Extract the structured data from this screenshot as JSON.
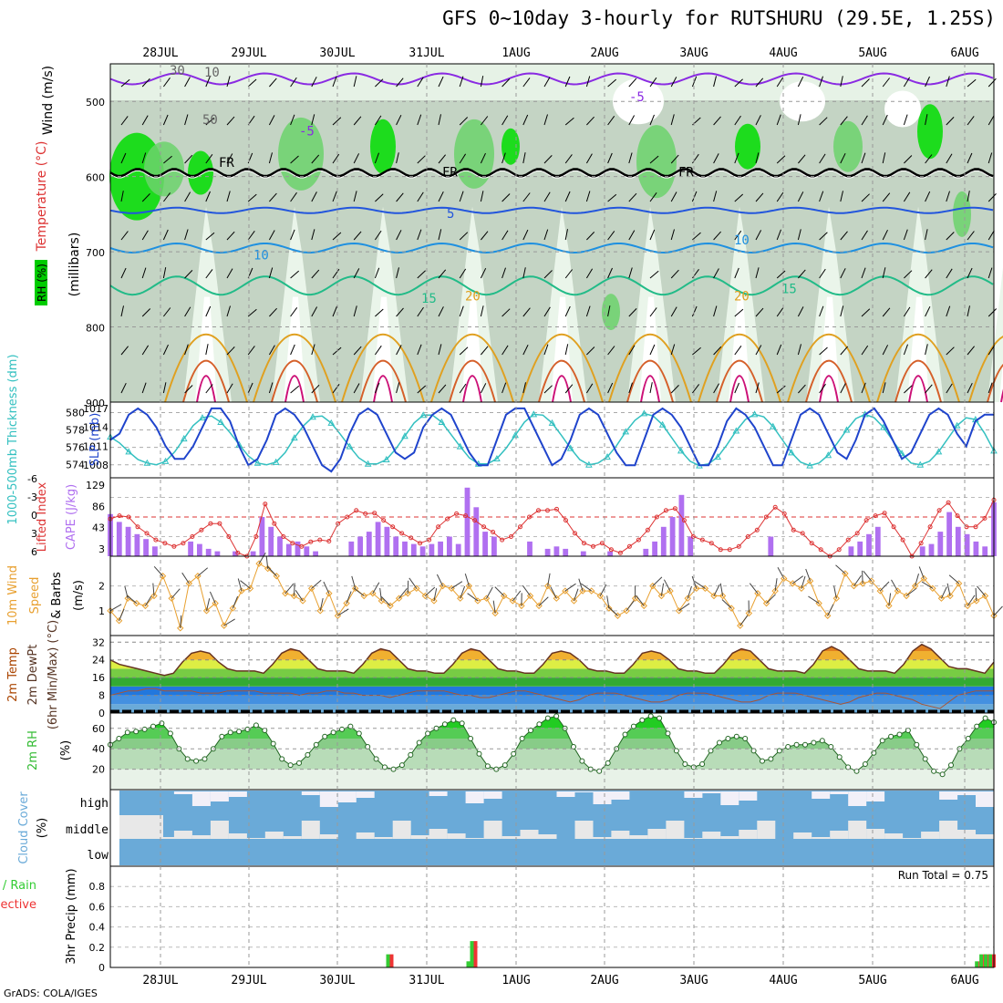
{
  "title": "GFS 0~10day 3-hourly for RUTSHURU (29.5E, 1.25S)",
  "footer": "GrADS: COLA/IGES",
  "date_labels": [
    "28JUL",
    "29JUL",
    "30JUL",
    "31JUL",
    "1AUG",
    "2AUG",
    "3AUG",
    "4AUG",
    "5AUG",
    "6AUG"
  ],
  "colors": {
    "rh_dark": "#00dd00",
    "rh_mid": "#6cd26c",
    "temp_freezing": "#000000",
    "temp_neg5": "#8a2be2",
    "temp_5": "#2255dd",
    "temp_10": "#1e90e0",
    "temp_15": "#22bb88",
    "temp_20": "#e0a020",
    "slp": "#1f44cc",
    "thickness": "#33c0c0",
    "cape": "#b070f0",
    "lifted": "#dd3333",
    "wind10": "#e8a030",
    "rh2m": "#33bb33",
    "cloud": "#6aaad8",
    "precip_total": "#33cc33",
    "precip_conv": "#ee3333"
  },
  "chart_data": [
    {
      "panel": "upper-air",
      "type": "heatmap",
      "ylabels": [
        "Temperature (°C)",
        "Wind (m/s)",
        "RH (%)",
        "(millibars)"
      ],
      "yticks": [
        500,
        600,
        700,
        800,
        900
      ],
      "ylim": [
        450,
        900
      ],
      "contour_labels": {
        "rh": [
          "30",
          "10",
          "50"
        ],
        "temp": [
          "-5",
          "-5",
          "FR",
          "FR",
          "FR",
          "5",
          "10",
          "10",
          "15",
          "15",
          "20",
          "20"
        ]
      }
    },
    {
      "panel": "thickness-slp",
      "type": "line",
      "ylabels": [
        "1000-500mb Thickness (dm)",
        "SLP (mb)"
      ],
      "yticks_left": [
        574,
        576,
        578,
        580
      ],
      "yticks_right": [
        1008,
        1011,
        1014,
        1017
      ],
      "series": [
        {
          "name": "SLP (mb)",
          "values": [
            1012,
            1013,
            1016,
            1017,
            1016,
            1014,
            1011,
            1009,
            1009,
            1011,
            1014,
            1017,
            1017,
            1015,
            1011,
            1008,
            1009,
            1012,
            1016,
            1017,
            1016,
            1014,
            1011,
            1008,
            1007,
            1009,
            1013,
            1016,
            1017,
            1016,
            1013,
            1010,
            1009,
            1010,
            1014,
            1016,
            1017,
            1016,
            1013,
            1010,
            1008,
            1008,
            1012,
            1016,
            1017,
            1017,
            1014,
            1011,
            1008,
            1009,
            1012,
            1016,
            1017,
            1016,
            1013,
            1010,
            1008,
            1008,
            1012,
            1016,
            1017,
            1016,
            1014,
            1011,
            1008,
            1008,
            1011,
            1015,
            1017,
            1016,
            1014,
            1011,
            1008,
            1008,
            1012,
            1016,
            1017,
            1016,
            1013,
            1010,
            1009,
            1012,
            1016,
            1017,
            1015,
            1012,
            1009,
            1010,
            1013,
            1016,
            1017,
            1016,
            1013,
            1011,
            1015,
            1016,
            1016
          ]
        },
        {
          "name": "Thickness (dm)",
          "values": [
            577.2,
            576.5,
            575.5,
            574.6,
            574.2,
            574.0,
            574.4,
            575.5,
            577.0,
            578.5,
            579.4,
            579.6,
            578.9,
            577.7,
            576.3,
            575.0,
            574.2,
            574.0,
            574.3,
            575.4,
            577.1,
            578.5,
            579.5,
            579.6,
            578.8,
            577.5,
            576.1,
            574.8,
            574.1,
            574.1,
            574.6,
            575.8,
            577.3,
            578.8,
            579.7,
            579.7,
            578.9,
            577.5,
            576.1,
            574.8,
            574.1,
            574.1,
            574.7,
            575.9,
            577.4,
            578.9,
            579.8,
            579.7,
            578.8,
            577.4,
            575.9,
            574.6,
            574.0,
            574.2,
            574.9,
            576.2,
            577.8,
            579.1,
            579.9,
            579.6,
            578.6,
            577.1,
            575.6,
            574.4,
            573.9,
            574.1,
            574.9,
            576.3,
            577.9,
            579.2,
            579.8,
            579.5,
            578.4,
            576.9,
            575.4,
            574.3,
            573.9,
            574.2,
            575.1,
            576.5,
            578.0,
            579.3,
            579.8,
            579.4,
            578.3,
            576.8,
            575.3,
            574.2,
            574.0,
            574.4,
            575.5,
            577.0,
            578.5,
            579.4,
            579.2,
            577.6,
            575.6
          ]
        }
      ]
    },
    {
      "panel": "cape-lifted",
      "type": "bar",
      "ylabels": [
        "Lifted Index",
        "CAPE (J/kg)"
      ],
      "yticks_left": [
        "-6",
        "-3",
        "0",
        "3",
        "6"
      ],
      "yticks_right": [
        "3",
        "43",
        "86",
        "129"
      ],
      "series": [
        {
          "name": "CAPE (J/kg)",
          "values": [
            86,
            70,
            60,
            45,
            35,
            20,
            0,
            0,
            0,
            30,
            25,
            15,
            10,
            0,
            10,
            0,
            10,
            80,
            60,
            40,
            25,
            30,
            20,
            10,
            0,
            0,
            0,
            30,
            40,
            50,
            70,
            60,
            40,
            30,
            25,
            20,
            25,
            30,
            40,
            25,
            140,
            100,
            50,
            40,
            0,
            0,
            0,
            30,
            0,
            15,
            20,
            15,
            0,
            10,
            0,
            0,
            10,
            0,
            0,
            0,
            15,
            30,
            60,
            80,
            125,
            40,
            0,
            0,
            0,
            0,
            0,
            0,
            0,
            0,
            40,
            0,
            0,
            0,
            0,
            0,
            0,
            0,
            0,
            20,
            30,
            45,
            60,
            0,
            0,
            0,
            0,
            20,
            25,
            50,
            90,
            60,
            45,
            30,
            20,
            110
          ]
        },
        {
          "name": "Lifted Index",
          "values": [
            0.3,
            -0.2,
            0,
            1.5,
            2.5,
            3.5,
            4,
            4.5,
            4,
            3,
            2,
            1,
            1,
            3,
            5.5,
            6,
            3,
            -2,
            1,
            3,
            4,
            4.5,
            3.8,
            3.5,
            3.7,
            1,
            0,
            -1,
            -0.5,
            -0.6,
            0.5,
            1.5,
            2.5,
            3.2,
            4,
            3.5,
            1.5,
            0.3,
            -0.5,
            -0.2,
            0.5,
            1.5,
            2.3,
            3.5,
            3,
            1.5,
            0,
            -1,
            -1,
            -1.2,
            0.5,
            2.5,
            4,
            4.5,
            4,
            5,
            5.5,
            4.5,
            3.5,
            2,
            0,
            -1,
            -1.3,
            0.5,
            3,
            3.5,
            4,
            5,
            5,
            4.5,
            3,
            2,
            0,
            -1.5,
            -0.5,
            2,
            2.5,
            4,
            5,
            6,
            5,
            3.5,
            2.5,
            0.5,
            -0.2,
            -0.6,
            1.5,
            3.5,
            6,
            4,
            1.5,
            -1,
            -2.2,
            -0.2,
            1.5,
            1.5,
            0.2,
            -2.6
          ]
        }
      ]
    },
    {
      "panel": "wind10",
      "type": "line",
      "ylabels": [
        "10m Wind",
        "Speed",
        "& Barbs",
        "(m/s)"
      ],
      "yticks": [
        1,
        2
      ],
      "series": [
        {
          "name": "Speed (m/s)",
          "values": [
            1.0,
            0.6,
            1.5,
            1.3,
            1.2,
            1.6,
            2.4,
            1.5,
            0.3,
            2.1,
            2.4,
            1.0,
            1.3,
            0.4,
            1.1,
            1.8,
            1.9,
            2.9,
            2.7,
            2.4,
            1.7,
            1.6,
            1.4,
            1.9,
            1.0,
            1.7,
            0.8,
            1.3,
            1.9,
            1.6,
            1.7,
            1.4,
            1.2,
            1.5,
            1.7,
            1.9,
            1.6,
            1.4,
            2.0,
            1.9,
            1.5,
            2.0,
            1.4,
            1.5,
            0.9,
            1.6,
            1.4,
            1.2,
            1.6,
            1.2,
            2.0,
            1.5,
            1.8,
            1.4,
            1.8,
            1.8,
            1.6,
            1.1,
            0.8,
            1.0,
            1.5,
            1.2,
            2.0,
            1.6,
            1.8,
            1.0,
            1.5,
            1.9,
            1.9,
            1.6,
            1.6,
            1.1,
            0.4,
            0.9,
            1.7,
            1.3,
            1.8,
            2.3,
            2.1,
            1.9,
            2.2,
            1.3,
            0.8,
            1.5,
            2.5,
            2.0,
            2.1,
            2.2,
            1.8,
            1.2,
            1.8,
            1.6,
            2.0,
            2.3,
            1.9,
            1.5,
            1.6,
            2.1,
            1.2,
            1.4,
            1.6,
            0.8
          ]
        }
      ]
    },
    {
      "panel": "temp2m",
      "type": "area",
      "ylabels": [
        "2m Temp",
        "2m DewPt",
        "(6hr Min/Max) (°C)"
      ],
      "yticks": [
        0,
        8,
        16,
        24,
        32
      ],
      "series": [
        {
          "name": "2m Temp",
          "values": [
            24,
            22,
            21,
            20,
            19,
            18,
            17,
            18,
            23,
            27,
            28,
            27,
            23,
            20,
            19,
            19,
            19,
            18,
            22,
            27,
            29,
            28,
            24,
            20,
            19,
            19,
            19,
            18,
            22,
            27,
            29,
            28,
            24,
            20,
            19,
            19,
            18,
            18,
            22,
            27,
            29,
            28,
            24,
            20,
            19,
            19,
            18,
            18,
            22,
            27,
            28,
            27,
            24,
            20,
            19,
            19,
            18,
            18,
            22,
            27,
            28,
            27,
            24,
            20,
            19,
            19,
            18,
            18,
            22,
            27,
            29,
            28,
            24,
            20,
            19,
            19,
            19,
            18,
            22,
            28,
            30,
            28,
            24,
            20,
            19,
            19,
            19,
            18,
            22,
            28,
            31,
            29,
            25,
            21,
            20,
            20,
            19,
            18,
            23
          ]
        },
        {
          "name": "2m DewPt",
          "values": [
            8,
            9,
            10,
            10,
            11,
            11,
            10,
            10,
            10,
            10,
            9,
            9,
            9,
            10,
            10,
            10,
            10,
            9,
            9,
            9,
            9,
            8,
            9,
            9,
            10,
            10,
            9,
            9,
            8,
            8,
            8,
            7,
            8,
            9,
            10,
            10,
            10,
            10,
            9,
            8,
            8,
            7,
            7,
            8,
            9,
            10,
            10,
            9,
            8,
            7,
            6,
            5,
            6,
            8,
            9,
            9,
            9,
            8,
            7,
            6,
            5,
            5,
            6,
            8,
            9,
            9,
            9,
            8,
            7,
            6,
            5,
            5,
            6,
            8,
            9,
            9,
            9,
            8,
            7,
            6,
            5,
            4,
            5,
            7,
            8,
            9,
            9,
            8,
            7,
            6,
            4,
            3,
            2,
            5,
            8,
            9,
            10,
            10,
            10
          ]
        }
      ]
    },
    {
      "panel": "rh2m",
      "type": "area",
      "ylabels": [
        "2m RH",
        "(%)"
      ],
      "yticks": [
        20,
        40,
        60
      ],
      "series": [
        {
          "name": "2m RH (%)",
          "values": [
            44,
            50,
            56,
            57,
            59,
            62,
            65,
            55,
            40,
            30,
            28,
            30,
            40,
            52,
            56,
            57,
            59,
            63,
            58,
            45,
            30,
            24,
            26,
            34,
            44,
            52,
            56,
            59,
            62,
            55,
            42,
            30,
            22,
            20,
            24,
            34,
            46,
            55,
            60,
            64,
            68,
            65,
            50,
            35,
            23,
            20,
            24,
            35,
            50,
            58,
            64,
            70,
            72,
            60,
            42,
            28,
            20,
            18,
            26,
            40,
            54,
            62,
            68,
            72,
            70,
            55,
            38,
            25,
            22,
            25,
            38,
            46,
            50,
            52,
            50,
            38,
            28,
            30,
            38,
            42,
            44,
            44,
            46,
            48,
            42,
            32,
            22,
            18,
            25,
            36,
            48,
            52,
            54,
            58,
            44,
            30,
            18,
            15,
            24,
            40,
            50,
            62,
            70,
            66
          ]
        }
      ]
    },
    {
      "panel": "cloud",
      "type": "heatmap",
      "ylabels": [
        "Cloud Cover",
        "(%)"
      ],
      "rows": [
        "high",
        "middle",
        "low"
      ]
    },
    {
      "panel": "precip",
      "type": "bar",
      "ylabels": [
        "Total / Rain",
        "Convective",
        "3hr Precip (mm)"
      ],
      "yticks": [
        "0",
        "0.2",
        "0.4",
        "0.6",
        "0.8"
      ],
      "ylim": [
        0,
        1.0
      ],
      "annotation": "Run Total = 0.75",
      "series": [
        {
          "name": "Total / Rain",
          "values": [
            0,
            0,
            0,
            0,
            0,
            0,
            0,
            0,
            0,
            0,
            0,
            0,
            0,
            0,
            0,
            0,
            0,
            0,
            0,
            0,
            0,
            0,
            0,
            0,
            0,
            0,
            0,
            0,
            0,
            0,
            0,
            0,
            0,
            0,
            0,
            0,
            0,
            0,
            0,
            0,
            0,
            0,
            0,
            0,
            0,
            0,
            0,
            0,
            0,
            0,
            0,
            0,
            0,
            0,
            0,
            0,
            0,
            0,
            0,
            0,
            0,
            0,
            0,
            0,
            0,
            0,
            0,
            0,
            0,
            0,
            0,
            0,
            0,
            0,
            0,
            0,
            0,
            0,
            0,
            0,
            0,
            0,
            0,
            0,
            0,
            0,
            0,
            0,
            0,
            0,
            0,
            0,
            0,
            0,
            0,
            0,
            0,
            0,
            0,
            0,
            0,
            0
          ]
        },
        {
          "name": "Convective",
          "values": [
            0
          ]
        }
      ],
      "events": [
        [
          31.0,
          0.13
        ],
        [
          39.9,
          0.06
        ],
        [
          40.3,
          0.26
        ],
        [
          96.3,
          0.06
        ],
        [
          96.8,
          0.13
        ],
        [
          97.3,
          0.13
        ],
        [
          97.8,
          0.13
        ]
      ]
    }
  ]
}
